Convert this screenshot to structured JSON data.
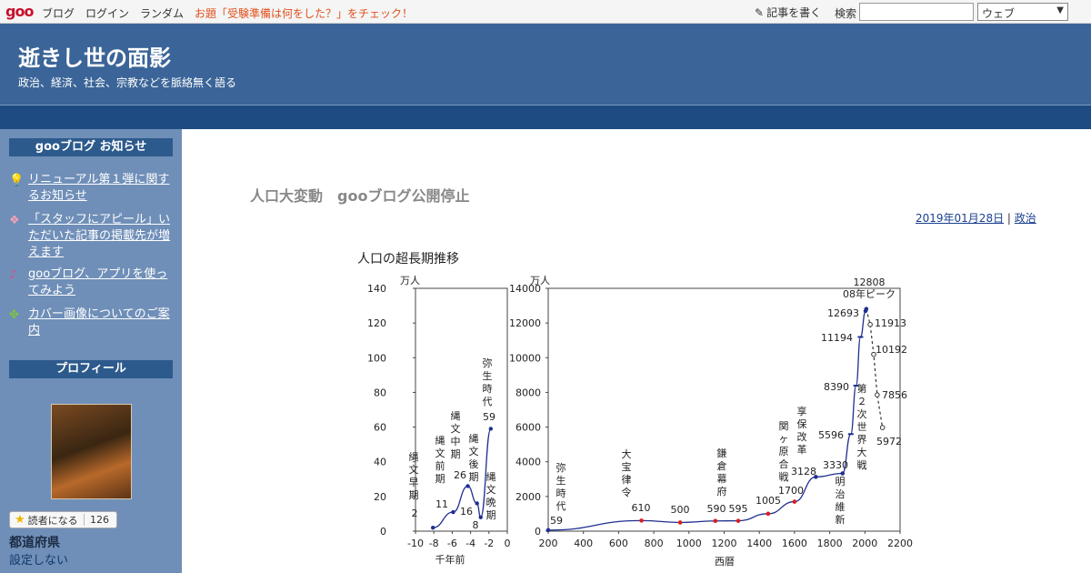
{
  "topbar": {
    "logo": "goo",
    "nav": [
      "ブログ",
      "ログイン",
      "ランダム"
    ],
    "notice": "お題「受験準備は何をした？」をチェック！",
    "write_label": "記事を書く",
    "search_label": "検索",
    "search_value": "",
    "search_scope": "ウェブ"
  },
  "header": {
    "title": "逝きし世の面影",
    "description": "政治、経済、社会、宗教などを脈絡無く語る"
  },
  "sidebar": {
    "notice_heading": "gooブログ お知らせ",
    "notice_items": [
      {
        "icon": "lightbulb-icon",
        "label": "リニューアル第１弾に関するお知らせ"
      },
      {
        "icon": "sparkle-icon",
        "label": "「スタッフにアピール」いただいた記事の掲載先が増えます"
      },
      {
        "icon": "music-note-icon",
        "label": "gooブログ、アプリを使ってみよう"
      },
      {
        "icon": "clover-icon",
        "label": "カバー画像についてのご案内"
      }
    ],
    "profile_heading": "プロフィール",
    "reader_label": "読者になる",
    "reader_count": "126",
    "prefecture_label": "都道府県",
    "prefecture_value": "設定しない"
  },
  "post": {
    "title": "人口大変動　gooブログ公開停止",
    "date": "2019年01月28日",
    "separator": " | ",
    "category": "政治"
  },
  "chart_title": "人口の超長期推移",
  "chart_data": [
    {
      "type": "line",
      "unit": "万人",
      "xlabel": "千年前",
      "xlim": [
        -10,
        0
      ],
      "ylim": [
        0,
        140
      ],
      "xticks": [
        -10,
        -8,
        -6,
        -4,
        -2,
        0
      ],
      "yticks": [
        0,
        20,
        40,
        60,
        80,
        100,
        120,
        140
      ],
      "points": [
        {
          "x": -8.1,
          "y": 2,
          "label": "2",
          "era": "縄文早期"
        },
        {
          "x": -5.9,
          "y": 11,
          "label": "11",
          "era": "縄文前期"
        },
        {
          "x": -4.3,
          "y": 26,
          "label": "26",
          "era": "縄文中期"
        },
        {
          "x": -3.3,
          "y": 16,
          "label": "16",
          "era": "縄文後期"
        },
        {
          "x": -2.9,
          "y": 8,
          "label": "8",
          "era": "縄文晩期"
        },
        {
          "x": -1.8,
          "y": 59,
          "label": "59",
          "era": "弥生時代"
        }
      ]
    },
    {
      "type": "line",
      "unit": "万人",
      "xlabel": "西暦",
      "xlim": [
        200,
        2200
      ],
      "ylim": [
        0,
        14000
      ],
      "xticks": [
        200,
        400,
        600,
        800,
        1000,
        1200,
        1400,
        1600,
        1800,
        2000,
        2200
      ],
      "yticks": [
        0,
        2000,
        4000,
        6000,
        8000,
        10000,
        12000,
        14000
      ],
      "series": [
        {
          "points": [
            {
              "x": 200,
              "y": 59,
              "label": "59",
              "era": "弥生時代"
            },
            {
              "x": 730,
              "y": 610,
              "label": "610",
              "era": "大宝律令"
            },
            {
              "x": 950,
              "y": 500,
              "label": "500"
            },
            {
              "x": 1150,
              "y": 590,
              "label": "590",
              "era": "鎌倉幕府"
            },
            {
              "x": 1280,
              "y": 595,
              "label": "595"
            },
            {
              "x": 1450,
              "y": 1005,
              "label": "1005"
            },
            {
              "x": 1600,
              "y": 1700,
              "label": "1700",
              "era": "関ヶ原合戦"
            },
            {
              "x": 1721,
              "y": 3128,
              "label": "3128",
              "era": "享保改革"
            },
            {
              "x": 1873,
              "y": 3330,
              "label": "3330",
              "era": "明治維新"
            },
            {
              "x": 1920,
              "y": 5596,
              "label": "5596"
            },
            {
              "x": 1950,
              "y": 8390,
              "label": "8390",
              "era": "第２次世界大戦"
            },
            {
              "x": 1975,
              "y": 11194,
              "label": "11194"
            },
            {
              "x": 2004,
              "y": 12693,
              "label": "12693"
            },
            {
              "x": 2008,
              "y": 12808,
              "label": "12808",
              "era": "08年ピーク"
            }
          ]
        },
        {
          "name": "projection",
          "dashed": true,
          "points": [
            {
              "x": 2008,
              "y": 12808
            },
            {
              "x": 2030,
              "y": 11913,
              "label": "11913"
            },
            {
              "x": 2050,
              "y": 10192,
              "label": "10192"
            },
            {
              "x": 2070,
              "y": 7856,
              "label": "7856"
            },
            {
              "x": 2100,
              "y": 5972,
              "label": "5972"
            }
          ]
        }
      ],
      "colors": {
        "line": "#1f2f8f",
        "highlight": "#d81e1e"
      }
    }
  ]
}
